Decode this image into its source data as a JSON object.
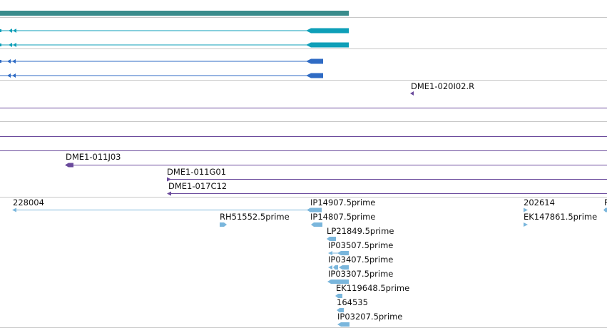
{
  "colors": {
    "separator": "#c8c8c8",
    "gene_span": "#3a8c8c",
    "transcript_teal": "#0e9fb8",
    "transcript_blue": "#2f6bc4",
    "clone_purple": "#6a4a9c",
    "est_lightblue": "#7ab6dc"
  },
  "labels": {
    "clone_020i02": "DME1-020I02.R",
    "clone_011j03": "DME1-011J03",
    "clone_011g01": "DME1-011G01",
    "clone_017c12": "DME1-017C12",
    "est_228004": "228004",
    "est_ip14907": "IP14907.5prime",
    "est_rh51552": "RH51552.5prime",
    "est_ip14807": "IP14807.5prime",
    "est_202614": "202614",
    "est_ek147861": "EK147861.5prime",
    "est_edge": "F",
    "est_lp21849": "LP21849.5prime",
    "est_ip03507": "IP03507.5prime",
    "est_ip03407": "IP03407.5prime",
    "est_ip03307": "IP03307.5prime",
    "est_ek119648": "EK119648.5prime",
    "est_164535": "164535",
    "est_ip03207": "IP03207.5prime"
  },
  "icons": {
    "strand_arrow": "left-triangle-icon",
    "exon_block": "rounded-block-icon"
  }
}
